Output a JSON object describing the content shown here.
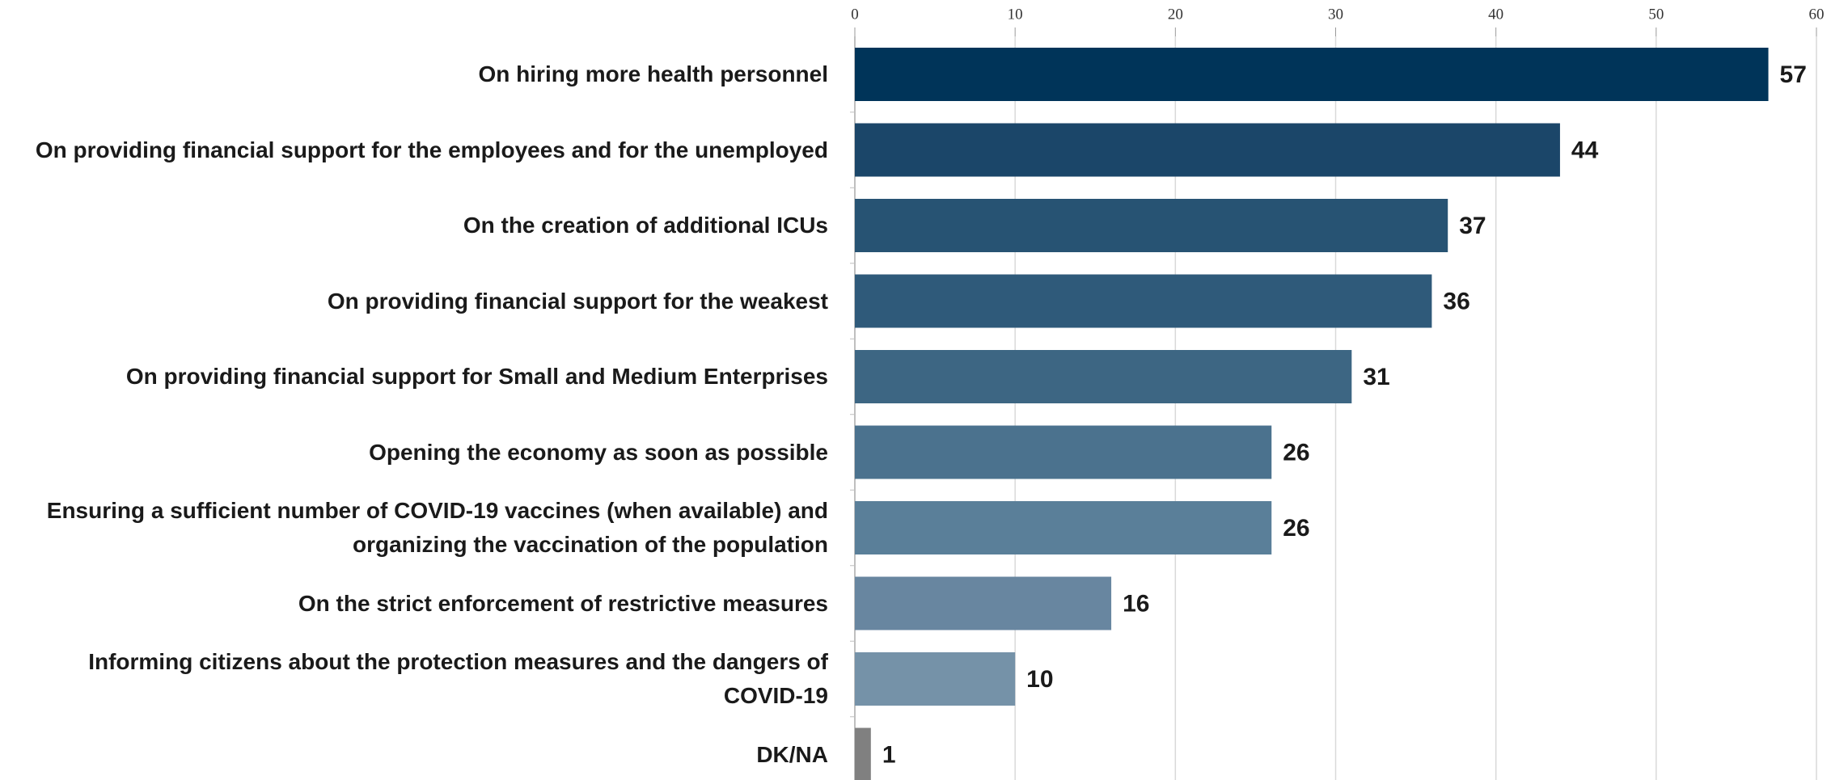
{
  "chart_data": {
    "type": "barh",
    "categories": [
      "On hiring more health personnel",
      "On providing financial support for the employees and for the unemployed",
      "On the creation of additional ICUs",
      "On providing financial support for the weakest",
      "On providing financial support for Small and Medium Enterprises",
      "Opening the economy as soon as possible",
      "Ensuring a sufficient number of COVID-19 vaccines (when available) and organizing the vaccination of the population",
      "On the strict enforcement of restrictive measures",
      "Informing citizens about the protection measures and the dangers of COVID-19",
      "DK/NA"
    ],
    "values": [
      57,
      44,
      37,
      36,
      31,
      26,
      26,
      16,
      10,
      1
    ],
    "colors": [
      "#003459",
      "#1b4669",
      "#275373",
      "#2f5a7a",
      "#3d6683",
      "#4b728e",
      "#5a7f99",
      "#6886a0",
      "#7592a8",
      "#808080"
    ],
    "xlim": [
      0,
      60
    ],
    "xticks": [
      0,
      10,
      20,
      30,
      40,
      50,
      60
    ],
    "grid": true
  }
}
